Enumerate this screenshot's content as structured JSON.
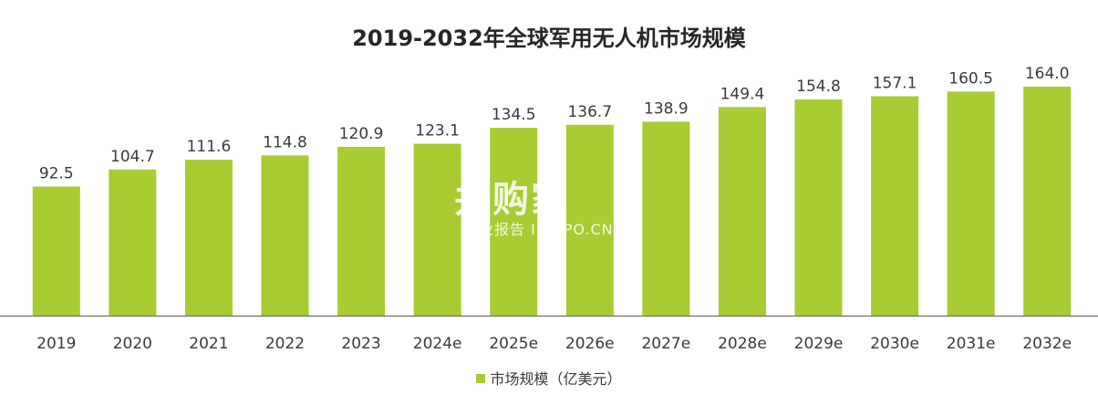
{
  "chart_data": {
    "type": "bar",
    "title": "2019-2032年全球军用无人机市场规模",
    "categories": [
      "2019",
      "2020",
      "2021",
      "2022",
      "2023",
      "2024e",
      "2025e",
      "2026e",
      "2027e",
      "2028e",
      "2029e",
      "2030e",
      "2031e",
      "2032e"
    ],
    "series": [
      {
        "name": "市场规模（亿美元）",
        "values": [
          92.5,
          104.7,
          111.6,
          114.8,
          120.9,
          123.1,
          134.5,
          136.7,
          138.9,
          149.4,
          154.8,
          157.1,
          160.5,
          164.0
        ],
        "labels": [
          "92.5",
          "104.7",
          "111.6",
          "114.8",
          "120.9",
          "123.1",
          "134.5",
          "136.7",
          "138.9",
          "149.4",
          "154.8",
          "157.1",
          "160.5",
          "164.0"
        ],
        "color": "#A8CC32"
      }
    ],
    "ylim": [
      0,
      164.0
    ],
    "grid": false,
    "legend_position": "bottom"
  },
  "watermark": {
    "logo_text": "并购家",
    "sub_text": "行业报告 IPOIPO.CN"
  }
}
